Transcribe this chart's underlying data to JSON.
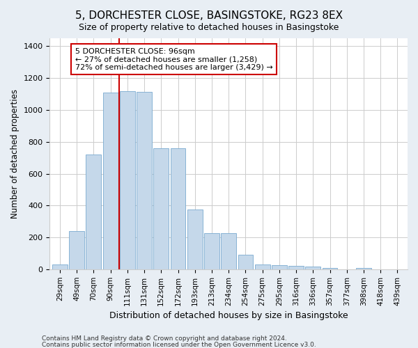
{
  "title": "5, DORCHESTER CLOSE, BASINGSTOKE, RG23 8EX",
  "subtitle": "Size of property relative to detached houses in Basingstoke",
  "xlabel": "Distribution of detached houses by size in Basingstoke",
  "ylabel": "Number of detached properties",
  "categories": [
    "29sqm",
    "49sqm",
    "70sqm",
    "90sqm",
    "111sqm",
    "131sqm",
    "152sqm",
    "172sqm",
    "193sqm",
    "213sqm",
    "234sqm",
    "254sqm",
    "275sqm",
    "295sqm",
    "316sqm",
    "336sqm",
    "357sqm",
    "377sqm",
    "398sqm",
    "418sqm",
    "439sqm"
  ],
  "values": [
    30,
    240,
    720,
    1110,
    1120,
    1115,
    760,
    760,
    375,
    228,
    228,
    90,
    30,
    25,
    20,
    15,
    10,
    0,
    10,
    0,
    0
  ],
  "bar_color": "#c5d8ea",
  "bar_edge_color": "#7aaad0",
  "vline_x_index": 3.5,
  "vline_color": "#cc0000",
  "annotation_text": "5 DORCHESTER CLOSE: 96sqm\n← 27% of detached houses are smaller (1,258)\n72% of semi-detached houses are larger (3,429) →",
  "annotation_box_color": "#ffffff",
  "annotation_box_edge": "#cc0000",
  "ylim": [
    0,
    1450
  ],
  "yticks": [
    0,
    200,
    400,
    600,
    800,
    1000,
    1200,
    1400
  ],
  "footer1": "Contains HM Land Registry data © Crown copyright and database right 2024.",
  "footer2": "Contains public sector information licensed under the Open Government Licence v3.0.",
  "bg_color": "#e8eef4",
  "plot_bg_color": "#ffffff",
  "grid_color": "#cccccc",
  "title_fontsize": 11,
  "subtitle_fontsize": 9
}
